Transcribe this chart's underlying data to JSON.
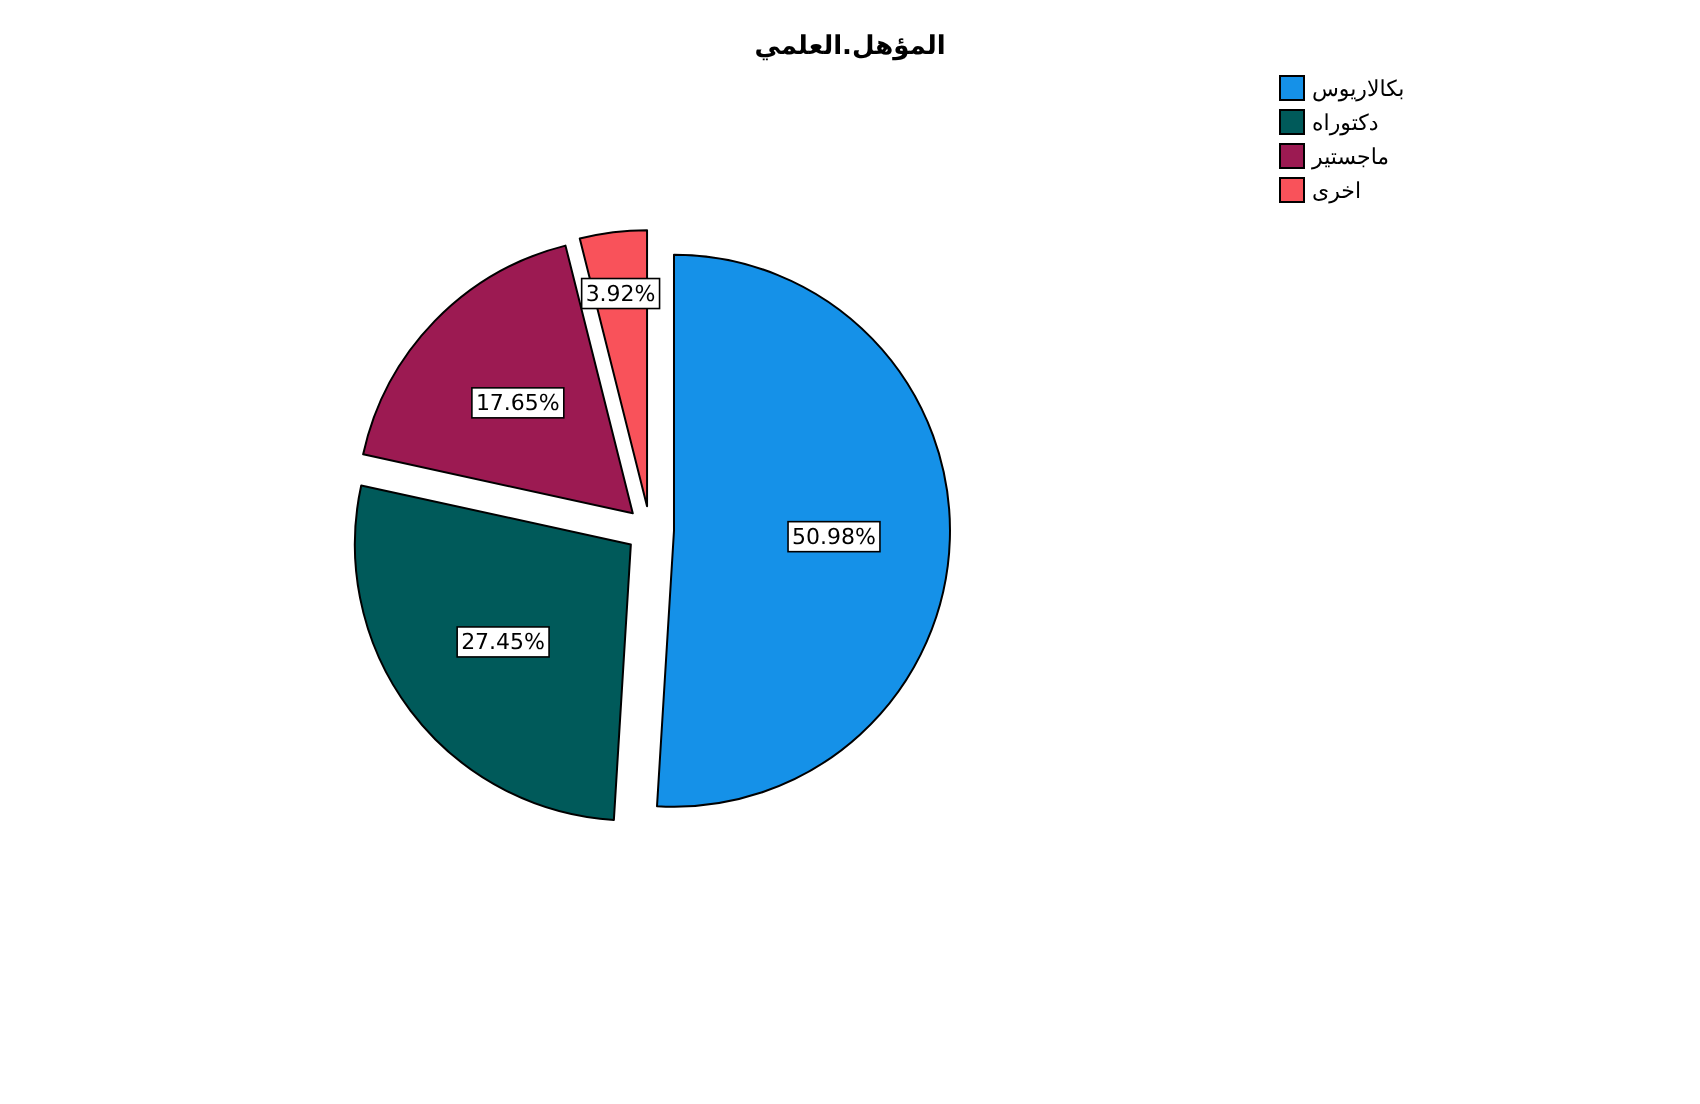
{
  "chart_data": {
    "type": "pie",
    "title": "المؤهل.العلمي",
    "categories": [
      "بكالاريوس",
      "دكتوراه",
      "ماجستير",
      "اخرى"
    ],
    "values": [
      50.98,
      27.45,
      17.65,
      3.92
    ],
    "colors": [
      "#1591e8",
      "#005a5a",
      "#9c1a52",
      "#f9525a"
    ],
    "value_labels": [
      "50.98%",
      "27.45%",
      "17.65%",
      "3.92%"
    ],
    "legend": "top right"
  }
}
